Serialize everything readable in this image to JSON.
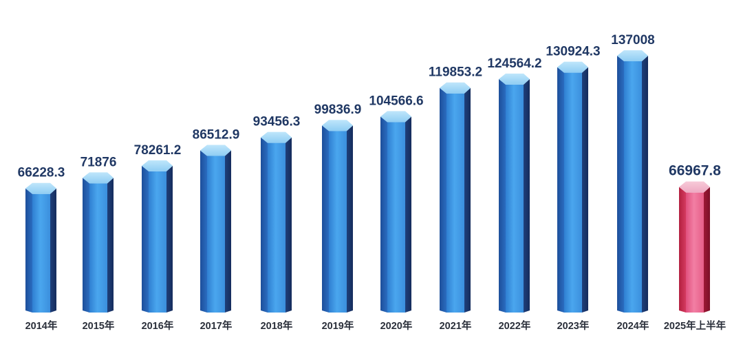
{
  "chart_data": {
    "type": "bar",
    "categories": [
      "2014年",
      "2015年",
      "2016年",
      "2017年",
      "2018年",
      "2019年",
      "2020年",
      "2021年",
      "2022年",
      "2023年",
      "2024年",
      "2025年上半年"
    ],
    "values": [
      66228.3,
      71876,
      78261.2,
      86512.9,
      93456.3,
      99836.9,
      104566.6,
      119853.2,
      124564.2,
      130924.3,
      137008,
      66967.8
    ],
    "value_labels": [
      "66228.3",
      "71876",
      "78261.2",
      "86512.9",
      "93456.3",
      "99836.9",
      "104566.6",
      "119853.2",
      "124564.2",
      "130924.3",
      "137008",
      "66967.8"
    ],
    "highlight_index": 11,
    "colors": {
      "bar": "#3a8fdb",
      "bar_highlight": "#e85a86",
      "value_text": "#203864",
      "category_text": "#2a2f3a"
    },
    "grid": false,
    "legend": "none"
  }
}
